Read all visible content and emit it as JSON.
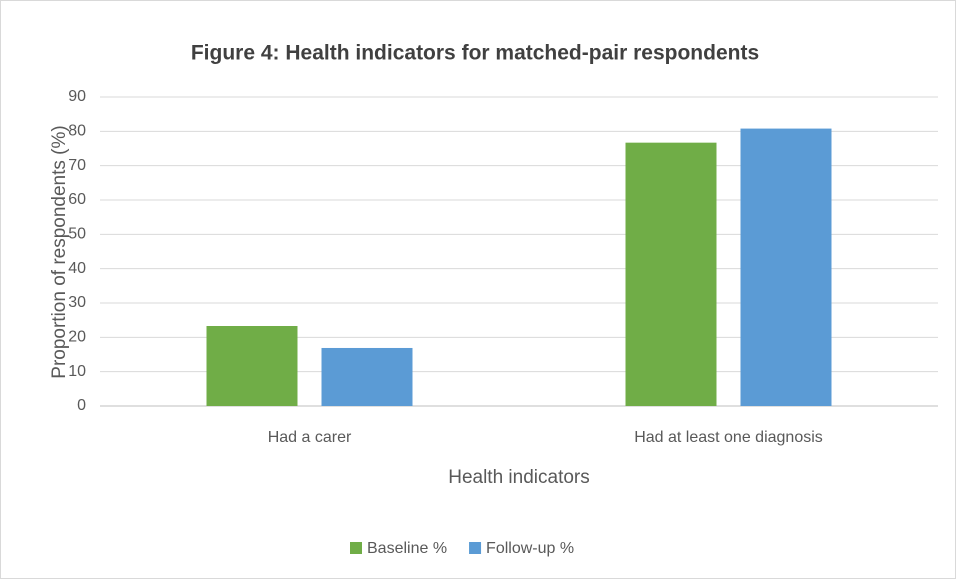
{
  "chart_data": {
    "type": "bar",
    "title": "Figure 4: Health indicators for matched-pair respondents",
    "x_label": "Health indicators",
    "y_label": "Proportion of respondents (%)",
    "categories": [
      "Had a carer",
      "Had at least one diagnosis"
    ],
    "series": [
      {
        "name": "Baseline %",
        "color": "#70ad47",
        "values": [
          23.3,
          76.7
        ]
      },
      {
        "name": "Follow-up %",
        "color": "#5b9bd5",
        "values": [
          16.9,
          80.8
        ]
      }
    ],
    "ylim": [
      0,
      90
    ],
    "yticks": [
      0,
      10,
      20,
      30,
      40,
      50,
      60,
      70,
      80,
      90
    ],
    "grid": true,
    "legend": "bottom"
  }
}
